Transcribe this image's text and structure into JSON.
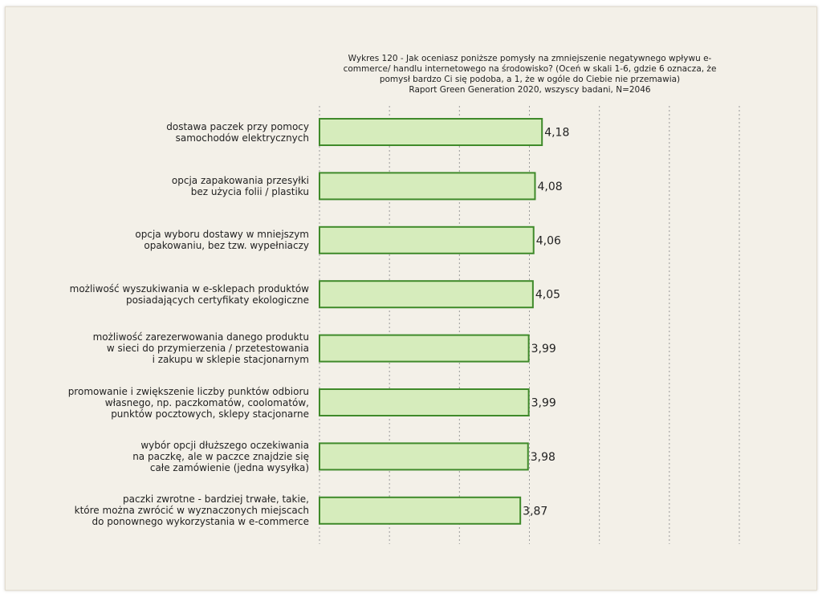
{
  "page": {
    "title_lines": [
      "Wykres 120 - Jak oceniasz poniższe pomysły na zmniejszenie negatywnego wpływu e-",
      "commerce/ handlu internetowego na środowisko? (Oceń w skali 1-6, gdzie 6 oznacza, że",
      "pomysł bardzo Ci się podoba, a 1, że w ogóle do Ciebie nie przemawia)",
      "Raport Green Generation 2020, wszyscy badani, N=2046"
    ]
  },
  "chart_data": {
    "type": "bar",
    "orientation": "horizontal",
    "title": "Wykres 120 - Jak oceniasz poniższe pomysły na zmniejszenie negatywnego wpływu e-commerce/ handlu internetowego na środowisko? (Oceń w skali 1-6, gdzie 6 oznacza, że pomysł bardzo Ci się podoba, a 1, że w ogóle do Ciebie nie przemawia) Raport Green Generation 2020, wszyscy badani, N=2046",
    "categories": [
      [
        "dostawa paczek przy pomocy",
        "samochodów elektrycznych"
      ],
      [
        "opcja zapakowania przesyłki",
        "bez użycia folii / plastiku"
      ],
      [
        "opcja wyboru dostawy w mniejszym",
        "opakowaniu, bez tzw. wypełniaczy"
      ],
      [
        "możliwość wyszukiwania w e-sklepach produktów",
        "posiadających certyfikaty ekologiczne"
      ],
      [
        "możliwość zarezerwowania danego produktu",
        "w sieci do przymierzenia / przetestowania",
        "i zakupu w sklepie stacjonarnym"
      ],
      [
        "promowanie i zwiększenie liczby punktów odbioru",
        "własnego, np. paczkomatów, coolomatów,",
        "punktów pocztowych, sklepy stacjonarne"
      ],
      [
        "wybór opcji dłuższego oczekiwania",
        "na paczkę, ale w paczce znajdzie się",
        "całe zamówienie (jedna wysyłka)"
      ],
      [
        "paczki zwrotne - bardziej trwałe, takie,",
        "które można zwrócić w wyznaczonych miejscach",
        "do ponownego wykorzystania w e-commerce"
      ]
    ],
    "values": [
      4.18,
      4.08,
      4.06,
      4.05,
      3.99,
      3.99,
      3.98,
      3.87
    ],
    "value_labels": [
      "4,18",
      "4,08",
      "4,06",
      "4,05",
      "3,99",
      "3,99",
      "3,98",
      "3,87"
    ],
    "xlim": [
      1,
      7
    ],
    "grid": "vertical-dashed",
    "bar_fill": "#d6ecbc",
    "bar_stroke": "#3f8a2a",
    "grid_color": "#9a9a9a"
  }
}
